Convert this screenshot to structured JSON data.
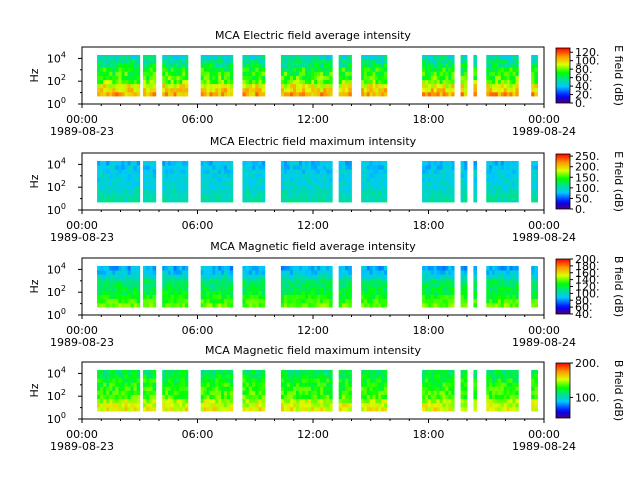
{
  "chart_data": [
    {
      "type": "heatmap",
      "title": "MCA  Electric field average intensity",
      "ylabel": "Hz",
      "yscale": "log",
      "ylim": [
        1,
        100000
      ],
      "yticks": [
        "10^0",
        "10^2",
        "10^4"
      ],
      "xlim": [
        "1989-08-23T00:00",
        "1989-08-24T00:00"
      ],
      "xticks": [
        {
          "time": "00:00",
          "date": "1989-08-23"
        },
        {
          "time": "06:00",
          "date": ""
        },
        {
          "time": "12:00",
          "date": ""
        },
        {
          "time": "18:00",
          "date": ""
        },
        {
          "time": "00:00",
          "date": "1989-08-24"
        }
      ],
      "colorbar": {
        "label": "E field (dB)",
        "range": [
          0,
          130
        ],
        "ticks": [
          "0.",
          "20.",
          "40.",
          "60.",
          "80.",
          "100.",
          "120."
        ],
        "colormap": "rainbow"
      },
      "data_segments_utc": [
        [
          "00:47",
          "03:00"
        ],
        [
          "03:10",
          "03:50"
        ],
        [
          "04:10",
          "05:30"
        ],
        [
          "06:10",
          "07:50"
        ],
        [
          "08:20",
          "09:30"
        ],
        [
          "10:20",
          "13:00"
        ],
        [
          "13:20",
          "14:00"
        ],
        [
          "14:30",
          "15:50"
        ],
        [
          "17:40",
          "19:20"
        ],
        [
          "19:40",
          "20:00"
        ],
        [
          "20:20",
          "20:30"
        ],
        [
          "21:00",
          "22:40"
        ],
        [
          "23:20",
          "23:40"
        ]
      ],
      "intensity_high_at_low_freq": "Yes"
    },
    {
      "type": "heatmap",
      "title": "MCA  Electric field maximum intensity",
      "ylabel": "Hz",
      "yscale": "log",
      "ylim": [
        1,
        100000
      ],
      "yticks": [
        "10^0",
        "10^2",
        "10^4"
      ],
      "xlim": [
        "1989-08-23T00:00",
        "1989-08-24T00:00"
      ],
      "xticks": [
        {
          "time": "00:00",
          "date": "1989-08-23"
        },
        {
          "time": "06:00",
          "date": ""
        },
        {
          "time": "12:00",
          "date": ""
        },
        {
          "time": "18:00",
          "date": ""
        },
        {
          "time": "00:00",
          "date": "1989-08-24"
        }
      ],
      "colorbar": {
        "label": "E field (dB)",
        "range": [
          0,
          260
        ],
        "ticks": [
          "0.",
          "50.",
          "100.",
          "150.",
          "200.",
          "250."
        ],
        "colormap": "rainbow"
      },
      "data_segments_utc": [
        [
          "00:47",
          "03:00"
        ],
        [
          "03:10",
          "03:50"
        ],
        [
          "04:10",
          "05:30"
        ],
        [
          "06:10",
          "07:50"
        ],
        [
          "08:20",
          "09:30"
        ],
        [
          "10:20",
          "13:00"
        ],
        [
          "13:20",
          "14:00"
        ],
        [
          "14:30",
          "15:50"
        ],
        [
          "17:40",
          "19:20"
        ],
        [
          "19:40",
          "20:00"
        ],
        [
          "20:20",
          "20:30"
        ],
        [
          "21:00",
          "22:40"
        ],
        [
          "23:20",
          "23:40"
        ]
      ]
    },
    {
      "type": "heatmap",
      "title": "MCA  Magnetic field average intensity",
      "ylabel": "Hz",
      "yscale": "log",
      "ylim": [
        1,
        100000
      ],
      "yticks": [
        "10^0",
        "10^2",
        "10^4"
      ],
      "xlim": [
        "1989-08-23T00:00",
        "1989-08-24T00:00"
      ],
      "xticks": [
        {
          "time": "00:00",
          "date": "1989-08-23"
        },
        {
          "time": "06:00",
          "date": ""
        },
        {
          "time": "12:00",
          "date": ""
        },
        {
          "time": "18:00",
          "date": ""
        },
        {
          "time": "00:00",
          "date": "1989-08-24"
        }
      ],
      "colorbar": {
        "label": "B field (dB)",
        "range": [
          40,
          200
        ],
        "ticks": [
          "40.",
          "60.",
          "80.",
          "100.",
          "120.",
          "140.",
          "160.",
          "180.",
          "200."
        ],
        "colormap": "rainbow"
      },
      "data_segments_utc": [
        [
          "00:47",
          "03:00"
        ],
        [
          "03:10",
          "03:50"
        ],
        [
          "04:10",
          "05:30"
        ],
        [
          "06:10",
          "07:50"
        ],
        [
          "08:20",
          "09:30"
        ],
        [
          "10:20",
          "13:00"
        ],
        [
          "13:20",
          "14:00"
        ],
        [
          "14:30",
          "15:50"
        ],
        [
          "17:40",
          "19:20"
        ],
        [
          "19:40",
          "20:00"
        ],
        [
          "20:20",
          "20:30"
        ],
        [
          "21:00",
          "22:40"
        ],
        [
          "23:20",
          "23:40"
        ]
      ]
    },
    {
      "type": "heatmap",
      "title": "MCA  Magnetic field maximum intensity",
      "ylabel": "Hz",
      "yscale": "log",
      "ylim": [
        1,
        100000
      ],
      "yticks": [
        "10^0",
        "10^2",
        "10^4"
      ],
      "xlim": [
        "1989-08-23T00:00",
        "1989-08-24T00:00"
      ],
      "xticks": [
        {
          "time": "00:00",
          "date": "1989-08-23"
        },
        {
          "time": "06:00",
          "date": ""
        },
        {
          "time": "12:00",
          "date": ""
        },
        {
          "time": "18:00",
          "date": ""
        },
        {
          "time": "00:00",
          "date": "1989-08-24"
        }
      ],
      "colorbar": {
        "label": "B field (dB)",
        "range": [
          40,
          200
        ],
        "ticks": [
          "100.",
          "200."
        ],
        "colormap": "rainbow"
      },
      "data_segments_utc": [
        [
          "00:47",
          "03:00"
        ],
        [
          "03:10",
          "03:50"
        ],
        [
          "04:10",
          "05:30"
        ],
        [
          "06:10",
          "07:50"
        ],
        [
          "08:20",
          "09:30"
        ],
        [
          "10:20",
          "13:00"
        ],
        [
          "13:20",
          "14:00"
        ],
        [
          "14:30",
          "15:50"
        ],
        [
          "17:40",
          "19:20"
        ],
        [
          "19:40",
          "20:00"
        ],
        [
          "20:20",
          "20:30"
        ],
        [
          "21:00",
          "22:40"
        ],
        [
          "23:20",
          "23:40"
        ]
      ]
    }
  ]
}
